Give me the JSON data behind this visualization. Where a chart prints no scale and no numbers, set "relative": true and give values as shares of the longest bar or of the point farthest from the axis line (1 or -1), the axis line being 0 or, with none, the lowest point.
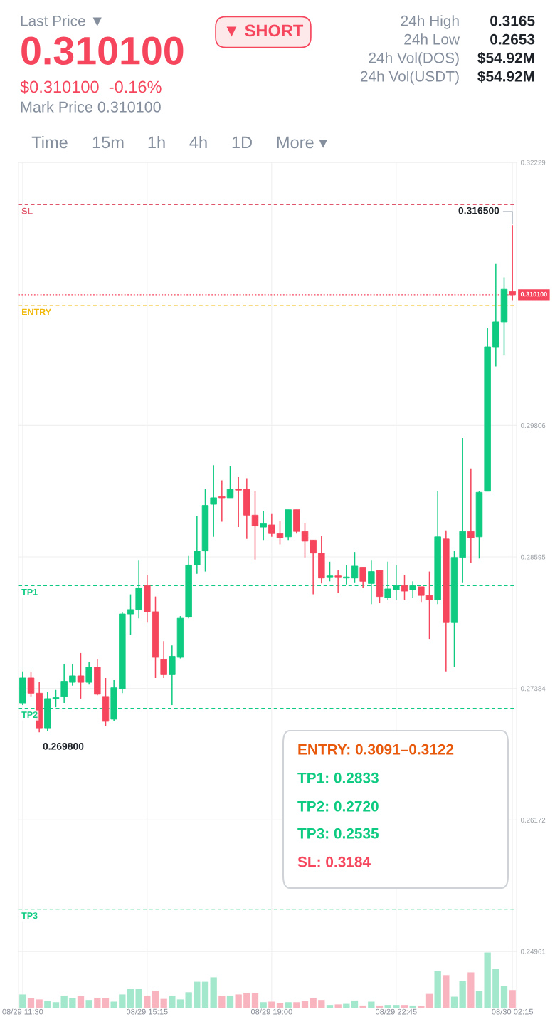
{
  "chart_data": [
    {
      "type": "candlestick",
      "tick_labels": "y",
      "grid": true,
      "categories": [
        "08/29 11:30",
        null,
        null,
        null,
        null,
        null,
        null,
        null,
        null,
        null,
        null,
        null,
        null,
        null,
        null,
        "08/29 15:15",
        null,
        null,
        null,
        null,
        null,
        null,
        null,
        null,
        null,
        null,
        null,
        null,
        null,
        null,
        "08/29 19:00",
        null,
        null,
        null,
        null,
        null,
        null,
        null,
        null,
        null,
        null,
        null,
        null,
        null,
        null,
        "08/29 22:45",
        null,
        null,
        null,
        null,
        null,
        null,
        null,
        null,
        null,
        null,
        null,
        null,
        null,
        "08/30 02:15"
      ],
      "ylim": [
        0.24961,
        0.32229
      ],
      "yticks": [
        0.24961,
        0.26172,
        0.27384,
        0.28595,
        0.29806,
        0.32229
      ],
      "ohlc": [
        [
          0.2725,
          0.2754,
          0.2723,
          0.2748
        ],
        [
          0.2748,
          0.2754,
          0.2731,
          0.2734
        ],
        [
          0.2734,
          0.2744,
          0.2698,
          0.2702
        ],
        [
          0.2702,
          0.2735,
          0.2699,
          0.2729
        ],
        [
          0.2729,
          0.2737,
          0.2721,
          0.273
        ],
        [
          0.2731,
          0.2761,
          0.2725,
          0.2745
        ],
        [
          0.2744,
          0.2761,
          0.2741,
          0.275
        ],
        [
          0.275,
          0.2771,
          0.2729,
          0.2744
        ],
        [
          0.2744,
          0.2763,
          0.2742,
          0.2758
        ],
        [
          0.2758,
          0.2765,
          0.2732,
          0.2733
        ],
        [
          0.2731,
          0.2748,
          0.2704,
          0.2708
        ],
        [
          0.271,
          0.2746,
          0.2708,
          0.2739
        ],
        [
          0.2738,
          0.2809,
          0.2734,
          0.2807
        ],
        [
          0.2807,
          0.2825,
          0.2788,
          0.2811
        ],
        [
          0.2811,
          0.2856,
          0.2803,
          0.2831
        ],
        [
          0.2833,
          0.2843,
          0.2799,
          0.2809
        ],
        [
          0.2809,
          0.2823,
          0.2748,
          0.2767
        ],
        [
          0.2765,
          0.2782,
          0.2748,
          0.2751
        ],
        [
          0.2751,
          0.2778,
          0.2723,
          0.2768
        ],
        [
          0.2767,
          0.2805,
          0.2766,
          0.2803
        ],
        [
          0.2804,
          0.2861,
          0.2803,
          0.2852
        ],
        [
          0.2852,
          0.2897,
          0.2844,
          0.2865
        ],
        [
          0.2865,
          0.2922,
          0.2846,
          0.2907
        ],
        [
          0.2908,
          0.2944,
          0.2878,
          0.2914
        ],
        [
          0.2915,
          0.293,
          0.2892,
          0.2914
        ],
        [
          0.2914,
          0.2943,
          0.2914,
          0.2922
        ],
        [
          0.2922,
          0.2933,
          0.2887,
          0.2921
        ],
        [
          0.2922,
          0.2932,
          0.2876,
          0.2898
        ],
        [
          0.2898,
          0.292,
          0.2857,
          0.2888
        ],
        [
          0.2887,
          0.2902,
          0.2875,
          0.289
        ],
        [
          0.2889,
          0.2899,
          0.2878,
          0.2881
        ],
        [
          0.2881,
          0.2893,
          0.2871,
          0.2877
        ],
        [
          0.2878,
          0.2903,
          0.2875,
          0.2903
        ],
        [
          0.2903,
          0.2903,
          0.2881,
          0.2883
        ],
        [
          0.2883,
          0.2891,
          0.2859,
          0.2874
        ],
        [
          0.2875,
          0.2875,
          0.2825,
          0.2863
        ],
        [
          0.2863,
          0.2879,
          0.2835,
          0.284
        ],
        [
          0.2841,
          0.2855,
          0.2837,
          0.2842
        ],
        [
          0.2842,
          0.2847,
          0.2826,
          0.2841
        ],
        [
          0.284,
          0.2852,
          0.2834,
          0.2841
        ],
        [
          0.284,
          0.2864,
          0.2836,
          0.2851
        ],
        [
          0.285,
          0.285,
          0.2831,
          0.2837
        ],
        [
          0.2835,
          0.2856,
          0.2816,
          0.2846
        ],
        [
          0.2847,
          0.2847,
          0.2817,
          0.2823
        ],
        [
          0.2822,
          0.2855,
          0.282,
          0.283
        ],
        [
          0.2829,
          0.2852,
          0.282,
          0.2833
        ],
        [
          0.2833,
          0.2843,
          0.282,
          0.2828
        ],
        [
          0.2829,
          0.2837,
          0.2822,
          0.2833
        ],
        [
          0.2832,
          0.2832,
          0.2818,
          0.2824
        ],
        [
          0.2824,
          0.2846,
          0.2784,
          0.282
        ],
        [
          0.282,
          0.292,
          0.2816,
          0.2878
        ],
        [
          0.2876,
          0.2884,
          0.2754,
          0.2799
        ],
        [
          0.2799,
          0.2865,
          0.2758,
          0.2859
        ],
        [
          0.2859,
          0.2969,
          0.2836,
          0.2883
        ],
        [
          0.2883,
          0.2941,
          0.2854,
          0.2877
        ],
        [
          0.2878,
          0.292,
          0.2858,
          0.2919
        ],
        [
          0.292,
          0.307,
          0.292,
          0.3053
        ],
        [
          0.3053,
          0.313,
          0.3035,
          0.3076
        ],
        [
          0.3076,
          0.3117,
          0.3045,
          0.3106
        ],
        [
          0.3104,
          0.3165,
          0.3096,
          0.3101
        ]
      ],
      "colors": [
        "#0ecb81",
        "#f6465d",
        "#f6465d",
        "#0ecb81",
        "#0ecb81",
        "#0ecb81",
        "#0ecb81",
        "#f6465d",
        "#0ecb81",
        "#f6465d",
        "#f6465d",
        "#0ecb81",
        "#0ecb81",
        "#0ecb81",
        "#0ecb81",
        "#f6465d",
        "#f6465d",
        "#f6465d",
        "#0ecb81",
        "#0ecb81",
        "#0ecb81",
        "#0ecb81",
        "#0ecb81",
        "#0ecb81",
        "#f6465d",
        "#0ecb81",
        "#f6465d",
        "#f6465d",
        "#f6465d",
        "#0ecb81",
        "#f6465d",
        "#f6465d",
        "#0ecb81",
        "#f6465d",
        "#f6465d",
        "#f6465d",
        "#f6465d",
        "#0ecb81",
        "#f6465d",
        "#0ecb81",
        "#0ecb81",
        "#f6465d",
        "#0ecb81",
        "#f6465d",
        "#0ecb81",
        "#0ecb81",
        "#f6465d",
        "#0ecb81",
        "#f6465d",
        "#f6465d",
        "#0ecb81",
        "#f6465d",
        "#0ecb81",
        "#0ecb81",
        "#f6465d",
        "#0ecb81",
        "#0ecb81",
        "#0ecb81",
        "#0ecb81",
        "#f6465d"
      ],
      "ref_lines": [
        {
          "axis": "y",
          "value": 0.3184,
          "label": "SL",
          "color": "#e0566b",
          "line_style": "dashed"
        },
        {
          "axis": "y",
          "value": 0.3101,
          "label": "0.310100",
          "color": "#f6465d",
          "line_style": "dotted"
        },
        {
          "axis": "y",
          "value": 0.3091,
          "label": "ENTRY",
          "color": "#f0b90b",
          "line_style": "dashed"
        },
        {
          "axis": "y",
          "value": 0.2833,
          "label": "TP1",
          "color": "#0ecb81",
          "line_style": "dashed"
        },
        {
          "axis": "y",
          "value": 0.272,
          "label": "TP2",
          "color": "#0ecb81",
          "line_style": "dashed"
        },
        {
          "axis": "y",
          "value": 0.2535,
          "label": "TP3",
          "color": "#0ecb81",
          "line_style": "dashed"
        }
      ],
      "annotations": [
        "Last Price ▼",
        "0.310100",
        "$0.310100  -0.16%",
        "Mark Price 0.310100",
        "▼ SHORT",
        "24h High",
        "0.3165",
        "24h Low",
        "0.2653",
        "24h Vol(DOS)",
        "$54.92M",
        "24h Vol(USDT)",
        "$54.92M",
        "Time",
        "15m",
        "1h",
        "4h",
        "1D",
        "More ▾",
        "ENTRY: 0.3091–0.3122",
        "TP1: 0.2833",
        "TP2: 0.2720",
        "TP3: 0.2535",
        "SL: 0.3184",
        {
          "text": "0.316500",
          "x": "08/30 02:15",
          "y": 0.3165
        },
        "0.269800"
      ]
    },
    {
      "type": "bar",
      "relative": true,
      "grid": "x",
      "categories": [
        "08/29 11:30",
        null,
        null,
        null,
        null,
        null,
        null,
        null,
        null,
        null,
        null,
        null,
        null,
        null,
        null,
        "08/29 15:15",
        null,
        null,
        null,
        null,
        null,
        null,
        null,
        null,
        null,
        null,
        null,
        null,
        null,
        null,
        "08/29 19:00",
        null,
        null,
        null,
        null,
        null,
        null,
        null,
        null,
        null,
        null,
        null,
        null,
        null,
        null,
        "08/29 22:45",
        null,
        null,
        null,
        null,
        null,
        null,
        null,
        null,
        null,
        null,
        null,
        null,
        null,
        "08/30 02:15"
      ],
      "values": [
        0.24,
        0.18,
        0.15,
        0.12,
        0.1,
        0.22,
        0.17,
        0.21,
        0.14,
        0.18,
        0.18,
        0.11,
        0.24,
        0.34,
        0.34,
        0.22,
        0.31,
        0.16,
        0.22,
        0.15,
        0.28,
        0.47,
        0.47,
        0.55,
        0.22,
        0.22,
        0.24,
        0.27,
        0.26,
        0.1,
        0.11,
        0.09,
        0.1,
        0.1,
        0.12,
        0.17,
        0.14,
        0.05,
        0.06,
        0.07,
        0.13,
        0.04,
        0.11,
        0.04,
        0.05,
        0.05,
        0.05,
        0.04,
        0.03,
        0.25,
        0.66,
        0.59,
        0.2,
        0.48,
        0.64,
        0.3,
        1,
        0.71,
        0.4,
        0.32
      ],
      "colors": [
        "#a3e7cc",
        "#f9b5bf",
        "#f9b5bf",
        "#a3e7cc",
        "#a3e7cc",
        "#a3e7cc",
        "#a3e7cc",
        "#f9b5bf",
        "#a3e7cc",
        "#f9b5bf",
        "#f9b5bf",
        "#a3e7cc",
        "#a3e7cc",
        "#a3e7cc",
        "#a3e7cc",
        "#f9b5bf",
        "#f9b5bf",
        "#f9b5bf",
        "#a3e7cc",
        "#a3e7cc",
        "#a3e7cc",
        "#a3e7cc",
        "#a3e7cc",
        "#a3e7cc",
        "#f9b5bf",
        "#a3e7cc",
        "#f9b5bf",
        "#f9b5bf",
        "#f9b5bf",
        "#a3e7cc",
        "#f9b5bf",
        "#f9b5bf",
        "#a3e7cc",
        "#f9b5bf",
        "#f9b5bf",
        "#f9b5bf",
        "#f9b5bf",
        "#a3e7cc",
        "#f9b5bf",
        "#a3e7cc",
        "#a3e7cc",
        "#f9b5bf",
        "#a3e7cc",
        "#f9b5bf",
        "#a3e7cc",
        "#a3e7cc",
        "#f9b5bf",
        "#a3e7cc",
        "#f9b5bf",
        "#f9b5bf",
        "#a3e7cc",
        "#f9b5bf",
        "#a3e7cc",
        "#a3e7cc",
        "#f9b5bf",
        "#a3e7cc",
        "#a3e7cc",
        "#a3e7cc",
        "#a3e7cc",
        "#f9b5bf"
      ]
    }
  ]
}
